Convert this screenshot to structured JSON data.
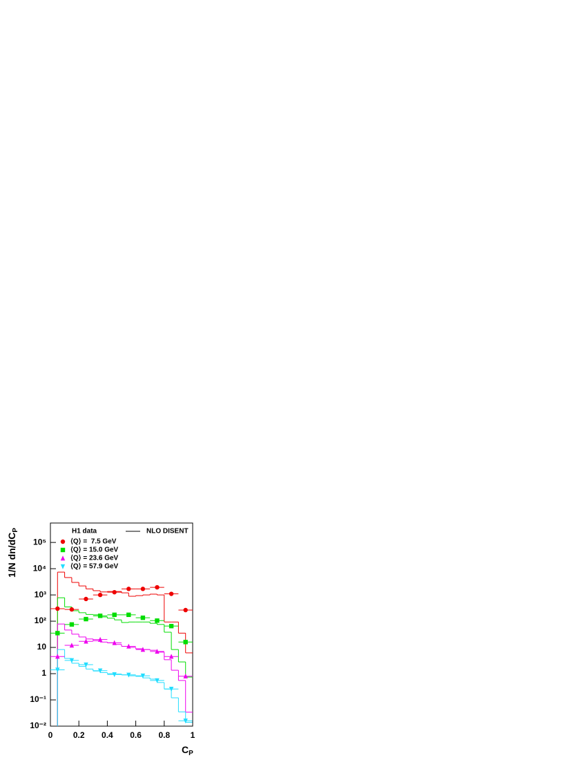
{
  "chart_data": {
    "type": "step",
    "ylabel": "1/N dn/dC",
    "ylabel_sub": "P",
    "xlabel": "C",
    "xlabel_sub": "P",
    "log_y": true,
    "xlim": [
      0,
      1
    ],
    "xticks": [
      0,
      0.2,
      0.4,
      0.6,
      0.8,
      1
    ],
    "ylim": [
      0.01,
      550000
    ],
    "yticks": [
      {
        "value": 0.01,
        "label": "10⁻²"
      },
      {
        "value": 0.1,
        "label": "10⁻¹"
      },
      1,
      10,
      {
        "value": 100,
        "label": "10²"
      },
      {
        "value": 1000,
        "label": "10³"
      },
      {
        "value": 10000,
        "label": "10⁴"
      },
      {
        "value": 100000,
        "label": "10⁵"
      }
    ],
    "legend_title": "H1 data",
    "x": [
      0.05,
      0.15,
      0.25,
      0.35,
      0.45,
      0.55,
      0.65,
      0.75,
      0.85,
      0.95
    ],
    "series": [
      {
        "name": "⟨Q⟩ =  7.5 GeV",
        "color": "#ee0000",
        "marker": "circle",
        "values": [
          300,
          280,
          700,
          1000,
          1270,
          1700,
          1700,
          1950,
          1100,
          265
        ]
      },
      {
        "name": "⟨Q⟩ = 15.0 GeV",
        "color": "#00dd00",
        "marker": "square",
        "values": [
          35,
          75,
          120,
          160,
          175,
          175,
          135,
          105,
          65,
          16
        ]
      },
      {
        "name": "⟨Q⟩ = 23.6 GeV",
        "color": "#ee00ee",
        "marker": "triangle-up",
        "values": [
          4.5,
          12,
          17,
          20,
          15,
          11,
          8.3,
          7,
          4.5,
          0.8
        ]
      },
      {
        "name": "⟨Q⟩ = 57.9 GeV",
        "color": "#22ddff",
        "marker": "triangle-down",
        "values": [
          1.4,
          3.2,
          2.2,
          1.3,
          0.93,
          0.9,
          0.83,
          0.55,
          0.26,
          0.016
        ]
      }
    ],
    "model": {
      "name": "NLO DISENT",
      "bins": [
        0.05,
        0.1,
        0.15,
        0.2,
        0.25,
        0.3,
        0.35,
        0.4,
        0.45,
        0.5,
        0.55,
        0.6,
        0.65,
        0.7,
        0.75,
        0.8,
        0.85,
        0.9,
        0.95,
        1
      ],
      "series": [
        {
          "color": "#ee0000",
          "values": [
            7400,
            4600,
            3000,
            2200,
            1700,
            1450,
            1300,
            1350,
            1350,
            1200,
            890,
            940,
            1000,
            1070,
            1000,
            93,
            93,
            35,
            6.2
          ]
        },
        {
          "color": "#00dd00",
          "values": [
            780,
            350,
            250,
            210,
            180,
            175,
            145,
            130,
            112,
            89,
            93,
            93,
            93,
            83,
            75,
            38,
            8.3,
            2.8,
            0.74
          ]
        },
        {
          "color": "#ee00ee",
          "values": [
            78,
            46,
            32,
            25,
            21,
            18,
            16,
            15,
            13,
            11,
            10,
            8.9,
            8.3,
            7.8,
            6.6,
            3.4,
            1.35,
            0.55,
            0.034
          ]
        },
        {
          "color": "#22ddff",
          "values": [
            8.3,
            3.8,
            2.5,
            1.9,
            1.5,
            1.26,
            1.1,
            1.0,
            0.97,
            0.9,
            0.83,
            0.79,
            0.69,
            0.62,
            0.46,
            0.26,
            0.12,
            0.035,
            0.014
          ]
        }
      ]
    }
  }
}
